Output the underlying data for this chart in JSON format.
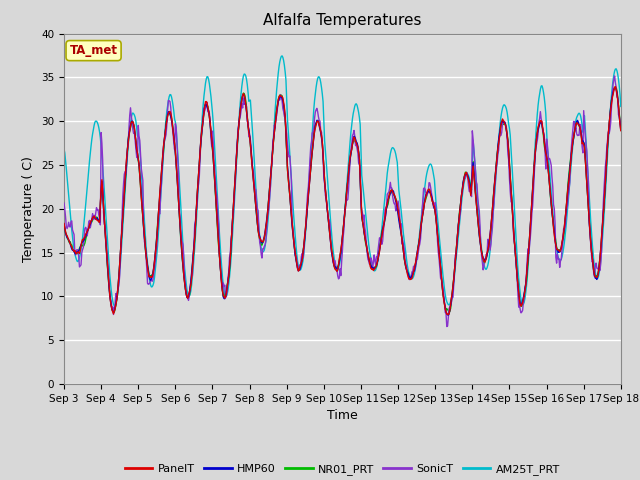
{
  "title": "Alfalfa Temperatures",
  "xlabel": "Time",
  "ylabel": "Temperature (C)",
  "ylabel_display": "Temperature ( C)",
  "annotation": "TA_met",
  "xlim_days": [
    3,
    18
  ],
  "ylim": [
    0,
    40
  ],
  "yticks": [
    0,
    5,
    10,
    15,
    20,
    25,
    30,
    35,
    40
  ],
  "xtick_labels": [
    "Sep 3",
    "Sep 4",
    "Sep 5",
    "Sep 6",
    "Sep 7",
    "Sep 8",
    "Sep 9",
    "Sep 10",
    "Sep 11",
    "Sep 12",
    "Sep 13",
    "Sep 14",
    "Sep 15",
    "Sep 16",
    "Sep 17",
    "Sep 18"
  ],
  "fig_bg": "#d8d8d8",
  "plot_bg": "#dcdcdc",
  "grid_color": "#ffffff",
  "series_colors": {
    "PanelT": "#dd0000",
    "HMP60": "#0000cc",
    "NR01_PRT": "#00bb00",
    "SonicT": "#8833cc",
    "AM25T_PRT": "#00bbcc"
  },
  "day_params": {
    "3": {
      "max": 19,
      "min": 15,
      "am25_max": 30,
      "am25_min": 14
    },
    "4": {
      "max": 30,
      "min": 8,
      "am25_max": 31,
      "am25_min": 9
    },
    "5": {
      "max": 31,
      "min": 12,
      "am25_max": 33,
      "am25_min": 11
    },
    "6": {
      "max": 32,
      "min": 10,
      "am25_max": 35,
      "am25_min": 10
    },
    "7": {
      "max": 33,
      "min": 10,
      "am25_max": 35.5,
      "am25_min": 10
    },
    "8": {
      "max": 33,
      "min": 16,
      "am25_max": 37.5,
      "am25_min": 15
    },
    "9": {
      "max": 30,
      "min": 13,
      "am25_max": 35,
      "am25_min": 13
    },
    "10": {
      "max": 28,
      "min": 13,
      "am25_max": 32,
      "am25_min": 13
    },
    "11": {
      "max": 22,
      "min": 13,
      "am25_max": 27,
      "am25_min": 13
    },
    "12": {
      "max": 22,
      "min": 12,
      "am25_max": 25,
      "am25_min": 12
    },
    "13": {
      "max": 24,
      "min": 8,
      "am25_max": 24,
      "am25_min": 9
    },
    "14": {
      "max": 30,
      "min": 14,
      "am25_max": 32,
      "am25_min": 13
    },
    "15": {
      "max": 30,
      "min": 9,
      "am25_max": 34,
      "am25_min": 9
    },
    "16": {
      "max": 30,
      "min": 15,
      "am25_max": 31,
      "am25_min": 14
    },
    "17": {
      "max": 34,
      "min": 12,
      "am25_max": 36,
      "am25_min": 12
    },
    "18": {
      "max": 34,
      "min": 15,
      "am25_max": 35,
      "am25_min": 14
    }
  }
}
